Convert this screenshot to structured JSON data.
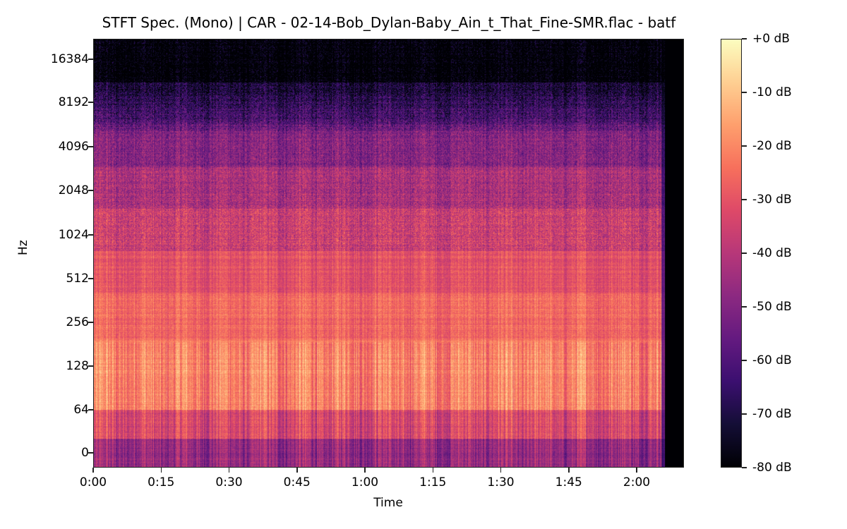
{
  "chart_data": {
    "type": "heatmap",
    "title": "STFT Spec. (Mono) | CAR - 02-14-Bob_Dylan-Baby_Ain_t_That_Fine-SMR.flac - batf",
    "xlabel": "Time",
    "ylabel": "Hz",
    "x_ticks": [
      "0:00",
      "0:15",
      "0:30",
      "0:45",
      "1:00",
      "1:15",
      "1:30",
      "1:45",
      "2:00"
    ],
    "x_tick_seconds": [
      0,
      15,
      30,
      45,
      60,
      75,
      90,
      105,
      120
    ],
    "x_range_seconds": [
      0,
      131
    ],
    "audio_end_seconds": 126,
    "y_scale": "log2",
    "y_ticks": [
      "0",
      "64",
      "128",
      "256",
      "512",
      "1024",
      "2048",
      "4096",
      "8192",
      "16384"
    ],
    "y_tick_values": [
      0,
      64,
      128,
      256,
      512,
      1024,
      2048,
      4096,
      8192,
      16384
    ],
    "colormap": "magma",
    "colorbar": {
      "ticks": [
        "+0 dB",
        "-10 dB",
        "-20 dB",
        "-30 dB",
        "-40 dB",
        "-50 dB",
        "-60 dB",
        "-70 dB",
        "-80 dB"
      ],
      "values": [
        0,
        -10,
        -20,
        -30,
        -40,
        -50,
        -60,
        -70,
        -80
      ],
      "range": [
        -80,
        0
      ]
    },
    "energy_profile_note": "Strongest energy 64-512 Hz (approx -15 to -25 dB); mid bands 512-4096 Hz approx -30 to -45 dB; above ~10 kHz near -70 to -80 dB; silence after ~2:06",
    "band_levels_db": [
      {
        "band": "0-64 Hz",
        "level_db": -45
      },
      {
        "band": "64-128 Hz",
        "level_db": -25
      },
      {
        "band": "128-256 Hz",
        "level_db": -20
      },
      {
        "band": "256-512 Hz",
        "level_db": -28
      },
      {
        "band": "512-1024 Hz",
        "level_db": -32
      },
      {
        "band": "1024-2048 Hz",
        "level_db": -38
      },
      {
        "band": "2048-4096 Hz",
        "level_db": -45
      },
      {
        "band": "4096-8192 Hz",
        "level_db": -55
      },
      {
        "band": "8192-16384 Hz",
        "level_db": -68
      },
      {
        "band": "16384+ Hz",
        "level_db": -78
      }
    ]
  }
}
